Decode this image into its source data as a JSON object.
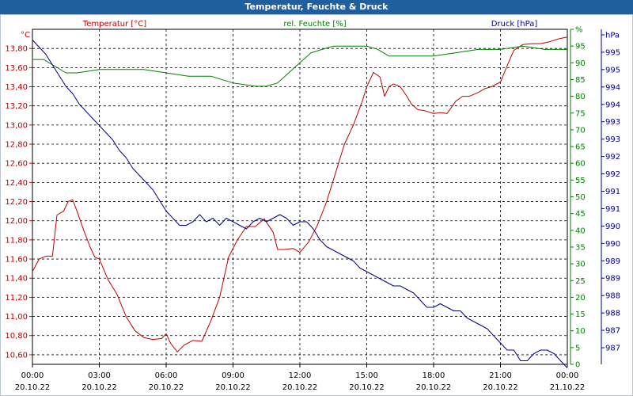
{
  "window_title": "Temperatur, Feuchte & Druck",
  "chart_data": {
    "type": "line",
    "title": "Temperatur, Feuchte & Druck",
    "x_start_hours": 0,
    "x_end_hours": 24,
    "x_tick_times": [
      "00:00",
      "03:00",
      "06:00",
      "09:00",
      "12:00",
      "15:00",
      "18:00",
      "21:00",
      "00:00"
    ],
    "x_tick_dates": [
      "20.10.22",
      "20.10.22",
      "20.10.22",
      "20.10.22",
      "20.10.22",
      "20.10.22",
      "20.10.22",
      "20.10.22",
      "21.10.22"
    ],
    "axes": {
      "temperature": {
        "label": "Temperatur [°C]",
        "unit": "°C",
        "color": "#c00000",
        "ylim": [
          10.5,
          14.0
        ],
        "ticks": [
          "10,60",
          "10,80",
          "11,00",
          "11,20",
          "11,40",
          "11,60",
          "11,80",
          "12,00",
          "12,20",
          "12,40",
          "12,60",
          "12,80",
          "13,00",
          "13,20",
          "13,40",
          "13,60",
          "13,80"
        ],
        "tick_values": [
          10.6,
          10.8,
          11.0,
          11.2,
          11.4,
          11.6,
          11.8,
          12.0,
          12.2,
          12.4,
          12.6,
          12.8,
          13.0,
          13.2,
          13.4,
          13.6,
          13.8
        ]
      },
      "humidity": {
        "label": "rel. Feuchte [%]",
        "unit": "%",
        "color": "#008000",
        "ylim": [
          0,
          100
        ],
        "ticks": [
          "0",
          "5",
          "10",
          "15",
          "20",
          "25",
          "30",
          "35",
          "40",
          "45",
          "50",
          "55",
          "60",
          "65",
          "70",
          "75",
          "80",
          "85",
          "90",
          "95",
          "%"
        ],
        "tick_values": [
          0,
          5,
          10,
          15,
          20,
          25,
          30,
          35,
          40,
          45,
          50,
          55,
          60,
          65,
          70,
          75,
          80,
          85,
          90,
          95,
          100
        ]
      },
      "pressure": {
        "label": "Druck [hPa]",
        "unit": "hPa",
        "color": "#00008b",
        "ylim": [
          986.2,
          995.6
        ],
        "ticks": [
          "987",
          "987",
          "988",
          "988",
          "989",
          "989",
          "990",
          "990",
          "991",
          "991",
          "992",
          "992",
          "993",
          "993",
          "994",
          "994",
          "995",
          "995",
          "hPa"
        ]
      }
    },
    "series": [
      {
        "name": "Temperatur [°C]",
        "axis": "temperature",
        "color": "#c00000",
        "x": [
          0,
          0.3,
          0.6,
          0.9,
          1.1,
          1.4,
          1.6,
          1.8,
          2.0,
          2.3,
          2.6,
          2.8,
          3.0,
          3.4,
          3.8,
          4.2,
          4.6,
          5.0,
          5.4,
          5.8,
          6.0,
          6.2,
          6.5,
          6.8,
          7.2,
          7.6,
          8.0,
          8.4,
          8.8,
          9.2,
          9.6,
          10.0,
          10.4,
          10.8,
          11.0,
          11.3,
          11.7,
          12.0,
          12.4,
          12.8,
          13.2,
          13.6,
          14.0,
          14.4,
          14.8,
          15.0,
          15.3,
          15.6,
          15.8,
          16.0,
          16.2,
          16.5,
          16.8,
          17.0,
          17.3,
          17.6,
          18.0,
          18.3,
          18.6,
          19.0,
          19.3,
          19.6,
          20.0,
          20.3,
          20.6,
          21.0,
          21.3,
          21.6,
          22.0,
          22.4,
          22.8,
          23.2,
          23.6,
          24.0
        ],
        "values": [
          11.47,
          11.6,
          11.63,
          11.63,
          12.06,
          12.1,
          12.2,
          12.22,
          12.1,
          11.9,
          11.72,
          11.62,
          11.6,
          11.38,
          11.23,
          11.0,
          10.85,
          10.78,
          10.76,
          10.77,
          10.82,
          10.72,
          10.63,
          10.7,
          10.75,
          10.74,
          10.95,
          11.2,
          11.62,
          11.8,
          11.94,
          11.94,
          12.02,
          11.88,
          11.7,
          11.7,
          11.71,
          11.67,
          11.78,
          11.96,
          12.2,
          12.5,
          12.8,
          13.0,
          13.25,
          13.4,
          13.55,
          13.5,
          13.3,
          13.4,
          13.43,
          13.4,
          13.3,
          13.22,
          13.16,
          13.15,
          13.12,
          13.13,
          13.12,
          13.25,
          13.3,
          13.3,
          13.34,
          13.38,
          13.4,
          13.45,
          13.62,
          13.78,
          13.84,
          13.85,
          13.85,
          13.87,
          13.9,
          13.92
        ]
      },
      {
        "name": "rel. Feuchte [%]",
        "axis": "humidity",
        "color": "#008000",
        "x": [
          0,
          0.5,
          1.0,
          1.5,
          2.0,
          3.0,
          4.0,
          5.0,
          6.0,
          7.0,
          8.0,
          9.0,
          10.0,
          10.5,
          11.0,
          11.5,
          12.0,
          12.5,
          13.0,
          13.5,
          14.0,
          14.5,
          15.0,
          15.5,
          16.0,
          17.0,
          18.0,
          19.0,
          20.0,
          21.0,
          22.0,
          23.0,
          24.0
        ],
        "values": [
          91,
          91,
          89,
          87,
          87,
          88,
          88,
          88,
          87,
          86,
          86,
          84,
          83,
          83,
          84,
          87,
          90,
          93,
          94,
          95,
          95,
          95,
          95,
          94,
          92,
          92,
          92,
          93,
          94,
          94,
          95,
          94,
          94
        ]
      },
      {
        "name": "Druck [hPa]",
        "axis": "pressure",
        "color": "#00008b",
        "x": [
          0,
          0.3,
          0.6,
          0.9,
          1.2,
          1.5,
          1.8,
          2.1,
          2.4,
          2.7,
          3.0,
          3.3,
          3.6,
          3.9,
          4.2,
          4.5,
          4.8,
          5.1,
          5.4,
          5.7,
          6.0,
          6.3,
          6.6,
          6.9,
          7.2,
          7.5,
          7.8,
          8.1,
          8.4,
          8.7,
          9.0,
          9.3,
          9.6,
          9.9,
          10.2,
          10.5,
          10.8,
          11.1,
          11.4,
          11.7,
          12.0,
          12.3,
          12.6,
          12.9,
          13.2,
          13.5,
          13.8,
          14.1,
          14.4,
          14.7,
          15.0,
          15.3,
          15.6,
          15.9,
          16.2,
          16.5,
          16.8,
          17.1,
          17.4,
          17.7,
          18.0,
          18.3,
          18.6,
          18.9,
          19.2,
          19.5,
          19.8,
          20.1,
          20.4,
          20.7,
          21.0,
          21.3,
          21.6,
          21.9,
          22.2,
          22.5,
          22.8,
          23.1,
          23.4,
          23.7,
          24.0
        ],
        "values": [
          995.3,
          995.1,
          994.9,
          994.6,
          994.3,
          994.0,
          993.8,
          993.5,
          993.3,
          993.1,
          992.9,
          992.7,
          992.5,
          992.2,
          992.0,
          991.7,
          991.5,
          991.3,
          991.1,
          990.8,
          990.5,
          990.3,
          990.1,
          990.1,
          990.2,
          990.4,
          990.2,
          990.3,
          990.1,
          990.3,
          990.2,
          990.1,
          990.0,
          990.2,
          990.3,
          990.2,
          990.3,
          990.4,
          990.3,
          990.1,
          990.2,
          990.2,
          990.0,
          989.7,
          989.5,
          989.4,
          989.3,
          989.2,
          989.1,
          988.9,
          988.8,
          988.7,
          988.6,
          988.5,
          988.4,
          988.4,
          988.3,
          988.2,
          988.0,
          987.8,
          987.8,
          987.9,
          987.8,
          987.7,
          987.7,
          987.5,
          987.4,
          987.3,
          987.2,
          987.0,
          986.8,
          986.6,
          986.6,
          986.3,
          986.3,
          986.5,
          986.6,
          986.6,
          986.5,
          986.3,
          986.1
        ]
      }
    ]
  }
}
